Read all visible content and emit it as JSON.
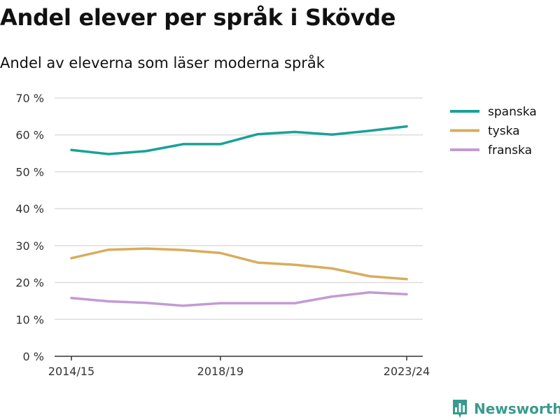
{
  "title": "Andel elever per språk i Skövde",
  "subtitle": "Andel av eleverna som läser moderna språk",
  "brand": {
    "name": "Newsworthy",
    "icon": "bar-chart-logo-icon",
    "color": "#3a9a8f"
  },
  "chart_data": {
    "type": "line",
    "title": "Andel elever per språk i Skövde",
    "subtitle": "Andel av eleverna som läser moderna språk",
    "xlabel": "",
    "ylabel": "",
    "x": [
      "2014/15",
      "2015/16",
      "2016/17",
      "2017/18",
      "2018/19",
      "2019/20",
      "2020/21",
      "2021/22",
      "2022/23",
      "2023/24"
    ],
    "x_tick_labels": [
      "2014/15",
      "2018/19",
      "2023/24"
    ],
    "ylim": [
      0,
      70
    ],
    "y_ticks": [
      0,
      10,
      20,
      30,
      40,
      50,
      60,
      70
    ],
    "y_tick_labels": [
      "0 %",
      "10 %",
      "20 %",
      "30 %",
      "40 %",
      "50 %",
      "60 %",
      "70 %"
    ],
    "grid": true,
    "legend_position": "right",
    "series": [
      {
        "name": "spanska",
        "color": "#1aa198",
        "values": [
          55.9,
          54.8,
          55.6,
          57.5,
          57.5,
          60.2,
          60.8,
          60.1,
          61.1,
          62.3
        ]
      },
      {
        "name": "tyska",
        "color": "#d9ac5c",
        "values": [
          26.6,
          28.9,
          29.2,
          28.8,
          28.0,
          25.4,
          24.8,
          23.8,
          21.7,
          20.9
        ]
      },
      {
        "name": "franska",
        "color": "#c39bd3",
        "values": [
          15.8,
          14.9,
          14.5,
          13.7,
          14.4,
          14.4,
          14.4,
          16.2,
          17.3,
          16.8
        ]
      }
    ]
  }
}
